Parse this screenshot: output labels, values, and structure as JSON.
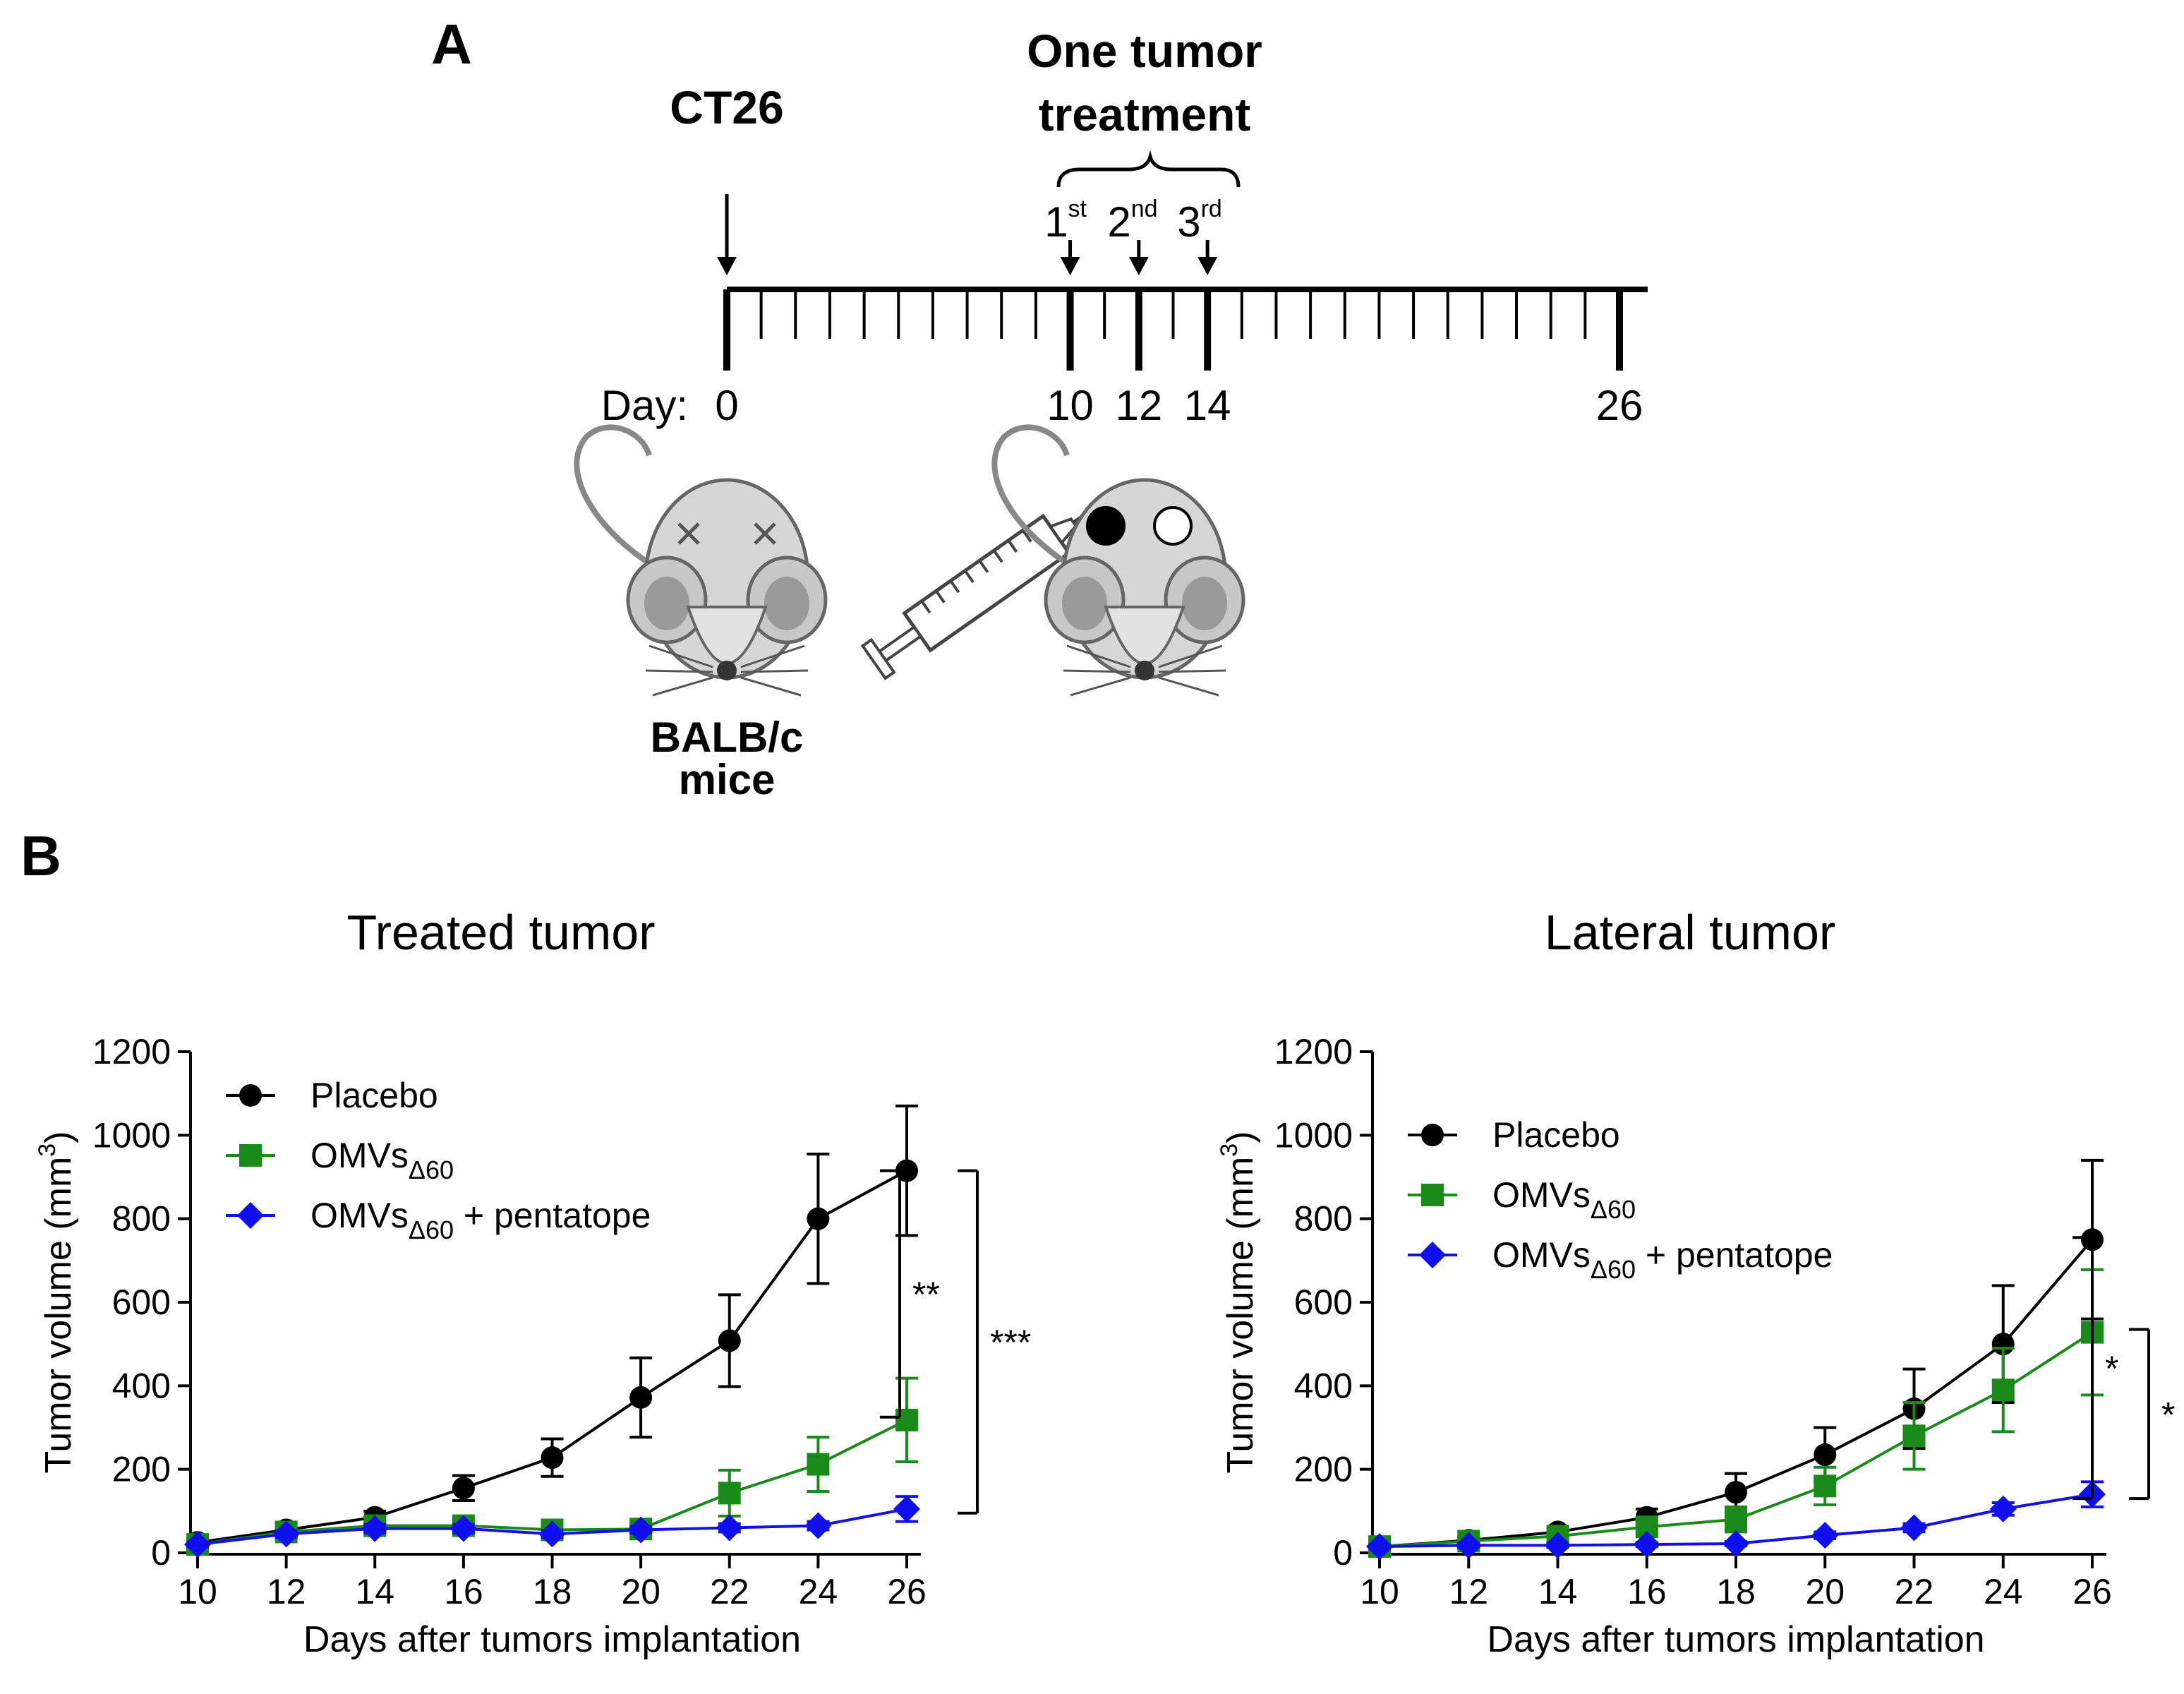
{
  "panel_a": {
    "label": "A",
    "ct26_label": "CT26",
    "treatment_title_line1": "One tumor",
    "treatment_title_line2": "treatment",
    "doses": [
      {
        "num": "1",
        "sup": "st"
      },
      {
        "num": "2",
        "sup": "nd"
      },
      {
        "num": "3",
        "sup": "rd"
      }
    ],
    "timeline": {
      "day_prefix": "Day:",
      "start_day": 0,
      "end_day": 26,
      "labeled_days": [
        {
          "day": 0,
          "label": "0"
        },
        {
          "day": 10,
          "label": "10"
        },
        {
          "day": 12,
          "label": "12"
        },
        {
          "day": 14,
          "label": "14"
        },
        {
          "day": 26,
          "label": "26"
        }
      ],
      "injection_day": 0,
      "treatment_days": [
        10,
        12,
        14
      ]
    },
    "mouse_label_line1": "BALB/c",
    "mouse_label_line2": "mice"
  },
  "panel_b": {
    "label": "B"
  },
  "colors": {
    "placebo": "#000000",
    "omvs": "#1a8a1a",
    "omvs_pentatope": "#1010ee"
  },
  "chart_data": [
    {
      "type": "line",
      "title": "Treated tumor",
      "xlabel": "Days after tumors implantation",
      "ylabel": "Tumor volume (mm3)",
      "ylabel_main": "Tumor volume (mm",
      "ylabel_sup": "3",
      "ylabel_close": ")",
      "x": [
        10,
        12,
        14,
        16,
        18,
        20,
        22,
        24,
        26
      ],
      "xticks": [
        "10",
        "12",
        "14",
        "16",
        "18",
        "20",
        "22",
        "24",
        "26"
      ],
      "yticks": [
        0,
        200,
        400,
        600,
        800,
        1000,
        1200
      ],
      "xlim": [
        10,
        26
      ],
      "ylim": [
        0,
        1200
      ],
      "legend": "top-left",
      "series": [
        {
          "name": "Placebo",
          "legend_main": "Placebo",
          "legend_sub": "",
          "legend_rest": "",
          "marker": "circle",
          "color": "#000000",
          "values": [
            25,
            55,
            85,
            155,
            228,
            372,
            508,
            800,
            915
          ],
          "errors": [
            10,
            15,
            15,
            30,
            45,
            95,
            110,
            155,
            155
          ]
        },
        {
          "name": "OMVsΔ60",
          "legend_main": "OMVs",
          "legend_sub": "Δ60",
          "legend_rest": "",
          "marker": "square",
          "color": "#1a8a1a",
          "values": [
            20,
            50,
            65,
            65,
            55,
            57,
            143,
            212,
            318
          ],
          "errors": [
            8,
            10,
            12,
            15,
            10,
            10,
            55,
            65,
            100
          ]
        },
        {
          "name": "OMVsΔ60 + pentatope",
          "legend_main": "OMVs",
          "legend_sub": "Δ60",
          "legend_rest": " + pentatope",
          "marker": "diamond",
          "color": "#1010ee",
          "values": [
            20,
            45,
            58,
            58,
            45,
            55,
            60,
            65,
            105
          ],
          "errors": [
            6,
            8,
            10,
            10,
            8,
            8,
            10,
            10,
            30
          ]
        }
      ],
      "significance": [
        {
          "label": "**",
          "from": 325,
          "to": 915
        },
        {
          "label": "***",
          "from": 95,
          "to": 915
        }
      ]
    },
    {
      "type": "line",
      "title": "Lateral tumor",
      "xlabel": "Days after tumors implantation",
      "ylabel": "Tumor volume (mm3)",
      "ylabel_main": "Tumor volume (mm",
      "ylabel_sup": "3",
      "ylabel_close": ")",
      "x": [
        10,
        12,
        14,
        16,
        18,
        20,
        22,
        24,
        26
      ],
      "xticks": [
        "10",
        "12",
        "14",
        "16",
        "18",
        "20",
        "22",
        "24",
        "26"
      ],
      "yticks": [
        0,
        200,
        400,
        600,
        800,
        1000,
        1200
      ],
      "xlim": [
        10,
        26
      ],
      "ylim": [
        0,
        1200
      ],
      "legend": "top-left",
      "series": [
        {
          "name": "Placebo",
          "legend_main": "Placebo",
          "legend_sub": "",
          "legend_rest": "",
          "marker": "circle",
          "color": "#000000",
          "values": [
            15,
            30,
            50,
            85,
            145,
            235,
            345,
            500,
            750
          ],
          "errors": [
            5,
            8,
            12,
            20,
            45,
            65,
            95,
            140,
            190
          ]
        },
        {
          "name": "OMVsΔ60",
          "legend_main": "OMVs",
          "legend_sub": "Δ60",
          "legend_rest": "",
          "marker": "square",
          "color": "#1a8a1a",
          "values": [
            15,
            28,
            40,
            62,
            80,
            160,
            280,
            390,
            528
          ],
          "errors": [
            5,
            8,
            10,
            15,
            30,
            45,
            80,
            100,
            150
          ]
        },
        {
          "name": "OMVsΔ60 + pentatope",
          "legend_main": "OMVs",
          "legend_sub": "Δ60",
          "legend_rest": " + pentatope",
          "marker": "diamond",
          "color": "#1010ee",
          "values": [
            15,
            18,
            18,
            20,
            22,
            42,
            60,
            105,
            140
          ],
          "errors": [
            4,
            5,
            5,
            5,
            5,
            8,
            10,
            15,
            30
          ]
        }
      ],
      "significance": [
        {
          "label": "*",
          "from": 130,
          "to": 755
        },
        {
          "label": "*",
          "from": 130,
          "to": 535
        }
      ]
    }
  ]
}
